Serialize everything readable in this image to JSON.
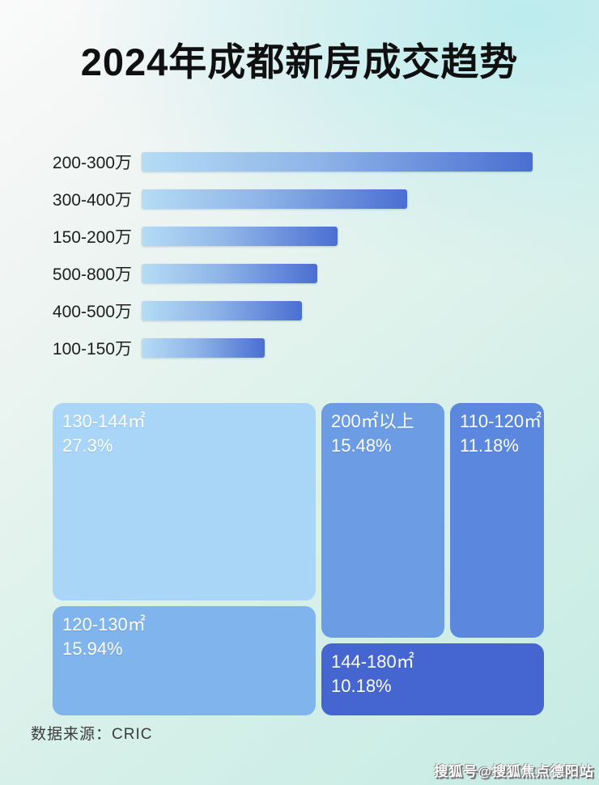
{
  "title": "2024年成都新房成交趋势",
  "source_label": "数据来源：CRIC",
  "watermark": "搜狐号@搜狐焦点德阳站",
  "colors": {
    "title_text": "#101010",
    "bar_gradient_start": "#b5dcf5",
    "bar_gradient_end": "#4a6fd2",
    "bar_label_text": "#1e1e1e",
    "treemap_text": "#ffffff",
    "background_top_left": "#fafafa",
    "background_top_right": "#cdeff0",
    "background_bottom_right": "#c6ebe3",
    "treemap_block_colors": {
      "block_130_144": "#a9d6f7",
      "block_200_plus": "#6b9ce4",
      "block_110_120": "#5b88de",
      "block_120_130": "#7fb4ec",
      "block_144_180": "#4566d1"
    }
  },
  "chart_data": [
    {
      "type": "bar",
      "orientation": "horizontal",
      "categories": [
        "200-300万",
        "300-400万",
        "150-200万",
        "500-800万",
        "400-500万",
        "100-150万"
      ],
      "values": [
        100,
        68,
        50,
        45,
        41,
        31.5
      ],
      "value_note": "no numeric axis or data labels shown in image; values are estimated bar lengths as percent of the longest bar",
      "xlabel": "",
      "ylabel": "",
      "grid": false,
      "legend": false
    },
    {
      "type": "treemap",
      "items": [
        {
          "label": "130-144㎡",
          "value": 27.3,
          "display": "27.3%"
        },
        {
          "label": "200㎡以上",
          "value": 15.48,
          "display": "15.48%"
        },
        {
          "label": "110-120㎡",
          "value": 11.18,
          "display": "11.18%"
        },
        {
          "label": "120-130㎡",
          "value": 15.94,
          "display": "15.94%"
        },
        {
          "label": "144-180㎡",
          "value": 10.18,
          "display": "10.18%"
        }
      ]
    }
  ]
}
